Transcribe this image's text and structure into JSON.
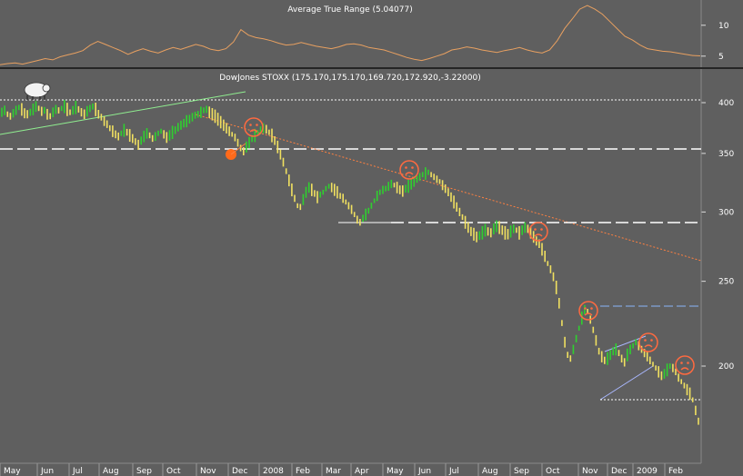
{
  "chart_data": [
    {
      "type": "line",
      "title": "Average True Range (5.04077)",
      "yticks": [
        5,
        10
      ],
      "ylim": [
        3.5,
        13.5
      ],
      "series": [
        {
          "values": [
            3.6,
            3.8,
            3.9,
            3.7,
            4.0,
            4.3,
            4.6,
            4.4,
            4.9,
            5.2,
            5.5,
            5.9,
            6.8,
            7.4,
            6.9,
            6.4,
            5.9,
            5.3,
            5.8,
            6.2,
            5.8,
            5.5,
            6.0,
            6.4,
            6.1,
            6.5,
            6.9,
            6.6,
            6.1,
            5.9,
            6.2,
            7.3,
            9.3,
            8.4,
            8.0,
            7.8,
            7.5,
            7.1,
            6.8,
            6.9,
            7.2,
            6.9,
            6.6,
            6.4,
            6.2,
            6.5,
            6.9,
            7.0,
            6.8,
            6.4,
            6.2,
            6.0,
            5.6,
            5.2,
            4.8,
            4.5,
            4.3,
            4.6,
            5.0,
            5.4,
            6.0,
            6.2,
            6.5,
            6.3,
            6.0,
            5.8,
            5.6,
            5.9,
            6.1,
            6.4,
            6.0,
            5.7,
            5.5,
            6.0,
            7.5,
            9.5,
            11.0,
            12.6,
            13.2,
            12.6,
            11.8,
            10.6,
            9.4,
            8.2,
            7.6,
            6.8,
            6.2,
            6.0,
            5.8,
            5.7,
            5.5,
            5.3,
            5.1,
            5.04
          ]
        }
      ]
    },
    {
      "type": "line",
      "title": "DowJones STOXX (175.170,175.170,169.720,172.920,-3.22000)",
      "yscale": "log",
      "ylim": [
        158,
        430
      ],
      "yticks": [
        200,
        250,
        300,
        350,
        400
      ],
      "x_labels": [
        "May",
        "Jun",
        "Jul",
        "Aug",
        "Sep",
        "Oct",
        "Nov",
        "Dec",
        "2008",
        "Feb",
        "Mar",
        "Apr",
        "May",
        "Jun",
        "Jul",
        "Aug",
        "Sep",
        "Oct",
        "Nov",
        "Dec",
        "2009",
        "Feb"
      ],
      "series": [
        {
          "values": [
            390,
            392,
            388,
            386,
            389,
            392,
            395,
            393,
            389,
            388,
            390,
            393,
            396,
            394,
            391,
            392,
            388,
            386,
            390,
            393,
            392,
            394,
            396,
            393,
            390,
            392,
            395,
            393,
            390,
            388,
            391,
            394,
            396,
            393,
            388,
            385,
            381,
            378,
            374,
            371,
            368,
            366,
            369,
            372,
            370,
            367,
            364,
            361,
            358,
            362,
            366,
            369,
            367,
            364,
            366,
            369,
            371,
            368,
            365,
            367,
            370,
            372,
            375,
            377,
            379,
            381,
            383,
            385,
            387,
            388,
            390,
            392,
            393,
            390,
            388,
            386,
            383,
            380,
            377,
            374,
            371,
            368,
            365,
            360,
            355,
            352,
            356,
            360,
            364,
            367,
            370,
            372,
            374,
            373,
            370,
            367,
            362,
            356,
            349,
            342,
            334,
            326,
            318,
            311,
            305,
            304,
            310,
            316,
            320,
            318,
            315,
            312,
            314,
            316,
            319,
            321,
            320,
            318,
            316,
            313,
            311,
            308,
            305,
            302,
            298,
            294,
            292,
            295,
            298,
            301,
            305,
            309,
            313,
            316,
            318,
            319,
            321,
            323,
            322,
            320,
            318,
            317,
            319,
            321,
            323,
            325,
            327,
            329,
            331,
            332,
            333,
            331,
            329,
            327,
            325,
            322,
            319,
            316,
            312,
            308,
            304,
            300,
            296,
            292,
            288,
            285,
            283,
            281,
            282,
            284,
            286,
            285,
            284,
            287,
            289,
            288,
            286,
            284,
            283,
            285,
            287,
            286,
            284,
            286,
            288,
            287,
            284,
            281,
            278,
            276,
            272,
            267,
            262,
            258,
            253,
            246,
            236,
            224,
            213,
            206,
            204,
            209,
            215,
            221,
            227,
            232,
            231,
            226,
            220,
            214,
            208,
            205,
            203,
            204,
            206,
            208,
            209,
            207,
            204,
            202,
            206,
            209,
            211,
            213,
            211,
            209,
            207,
            205,
            203,
            201,
            199,
            197,
            195,
            196,
            198,
            200,
            199,
            197,
            194,
            192,
            190,
            188,
            186,
            183,
            178,
            173
          ]
        }
      ]
    }
  ]
}
